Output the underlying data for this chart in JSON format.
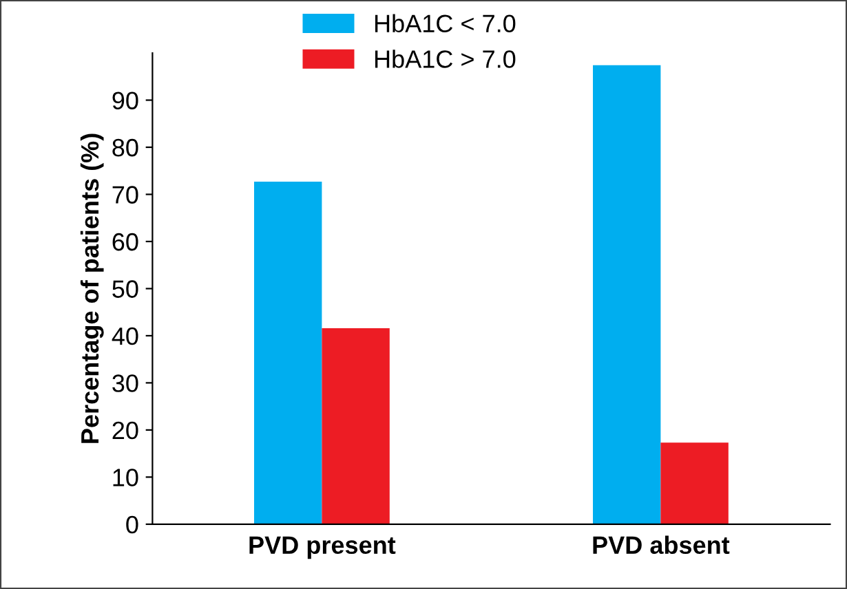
{
  "chart_data": {
    "type": "bar",
    "ylabel": "Percentage of patients (%)",
    "categories": [
      "PVD present",
      "PVD absent"
    ],
    "series": [
      {
        "name": "HbA1C < 7.0",
        "color": "#00aeef",
        "values": [
          72.7,
          97.4
        ]
      },
      {
        "name": "HbA1C > 7.0",
        "color": "#ed1c24",
        "values": [
          41.6,
          17.3
        ]
      }
    ],
    "ylim": [
      0,
      100
    ],
    "yticks": [
      0,
      10,
      20,
      30,
      40,
      50,
      60,
      70,
      80,
      90
    ],
    "grid": false,
    "legend": "top"
  }
}
